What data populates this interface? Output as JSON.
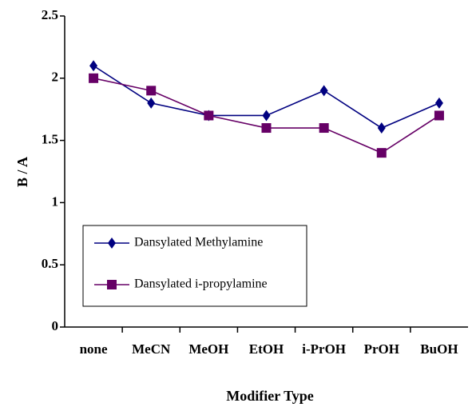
{
  "chart_data": {
    "type": "line",
    "x_label": "Modifier Type",
    "y_label": "B / A",
    "categories": [
      "none",
      "MeCN",
      "MeOH",
      "EtOH",
      "i-PrOH",
      "PrOH",
      "BuOH"
    ],
    "series": [
      {
        "name": "Dansylated Methylamine",
        "color": "#000080",
        "marker": "diamond",
        "values": [
          2.1,
          1.8,
          1.7,
          1.7,
          1.9,
          1.6,
          1.8
        ]
      },
      {
        "name": "Dansylated i-propylamine",
        "color": "#660066",
        "marker": "square",
        "values": [
          2.0,
          1.9,
          1.7,
          1.6,
          1.6,
          1.4,
          1.7
        ]
      }
    ],
    "ylim": [
      0,
      2.5
    ],
    "yticks": [
      0,
      0.5,
      1,
      1.5,
      2,
      2.5
    ],
    "grid": false
  }
}
